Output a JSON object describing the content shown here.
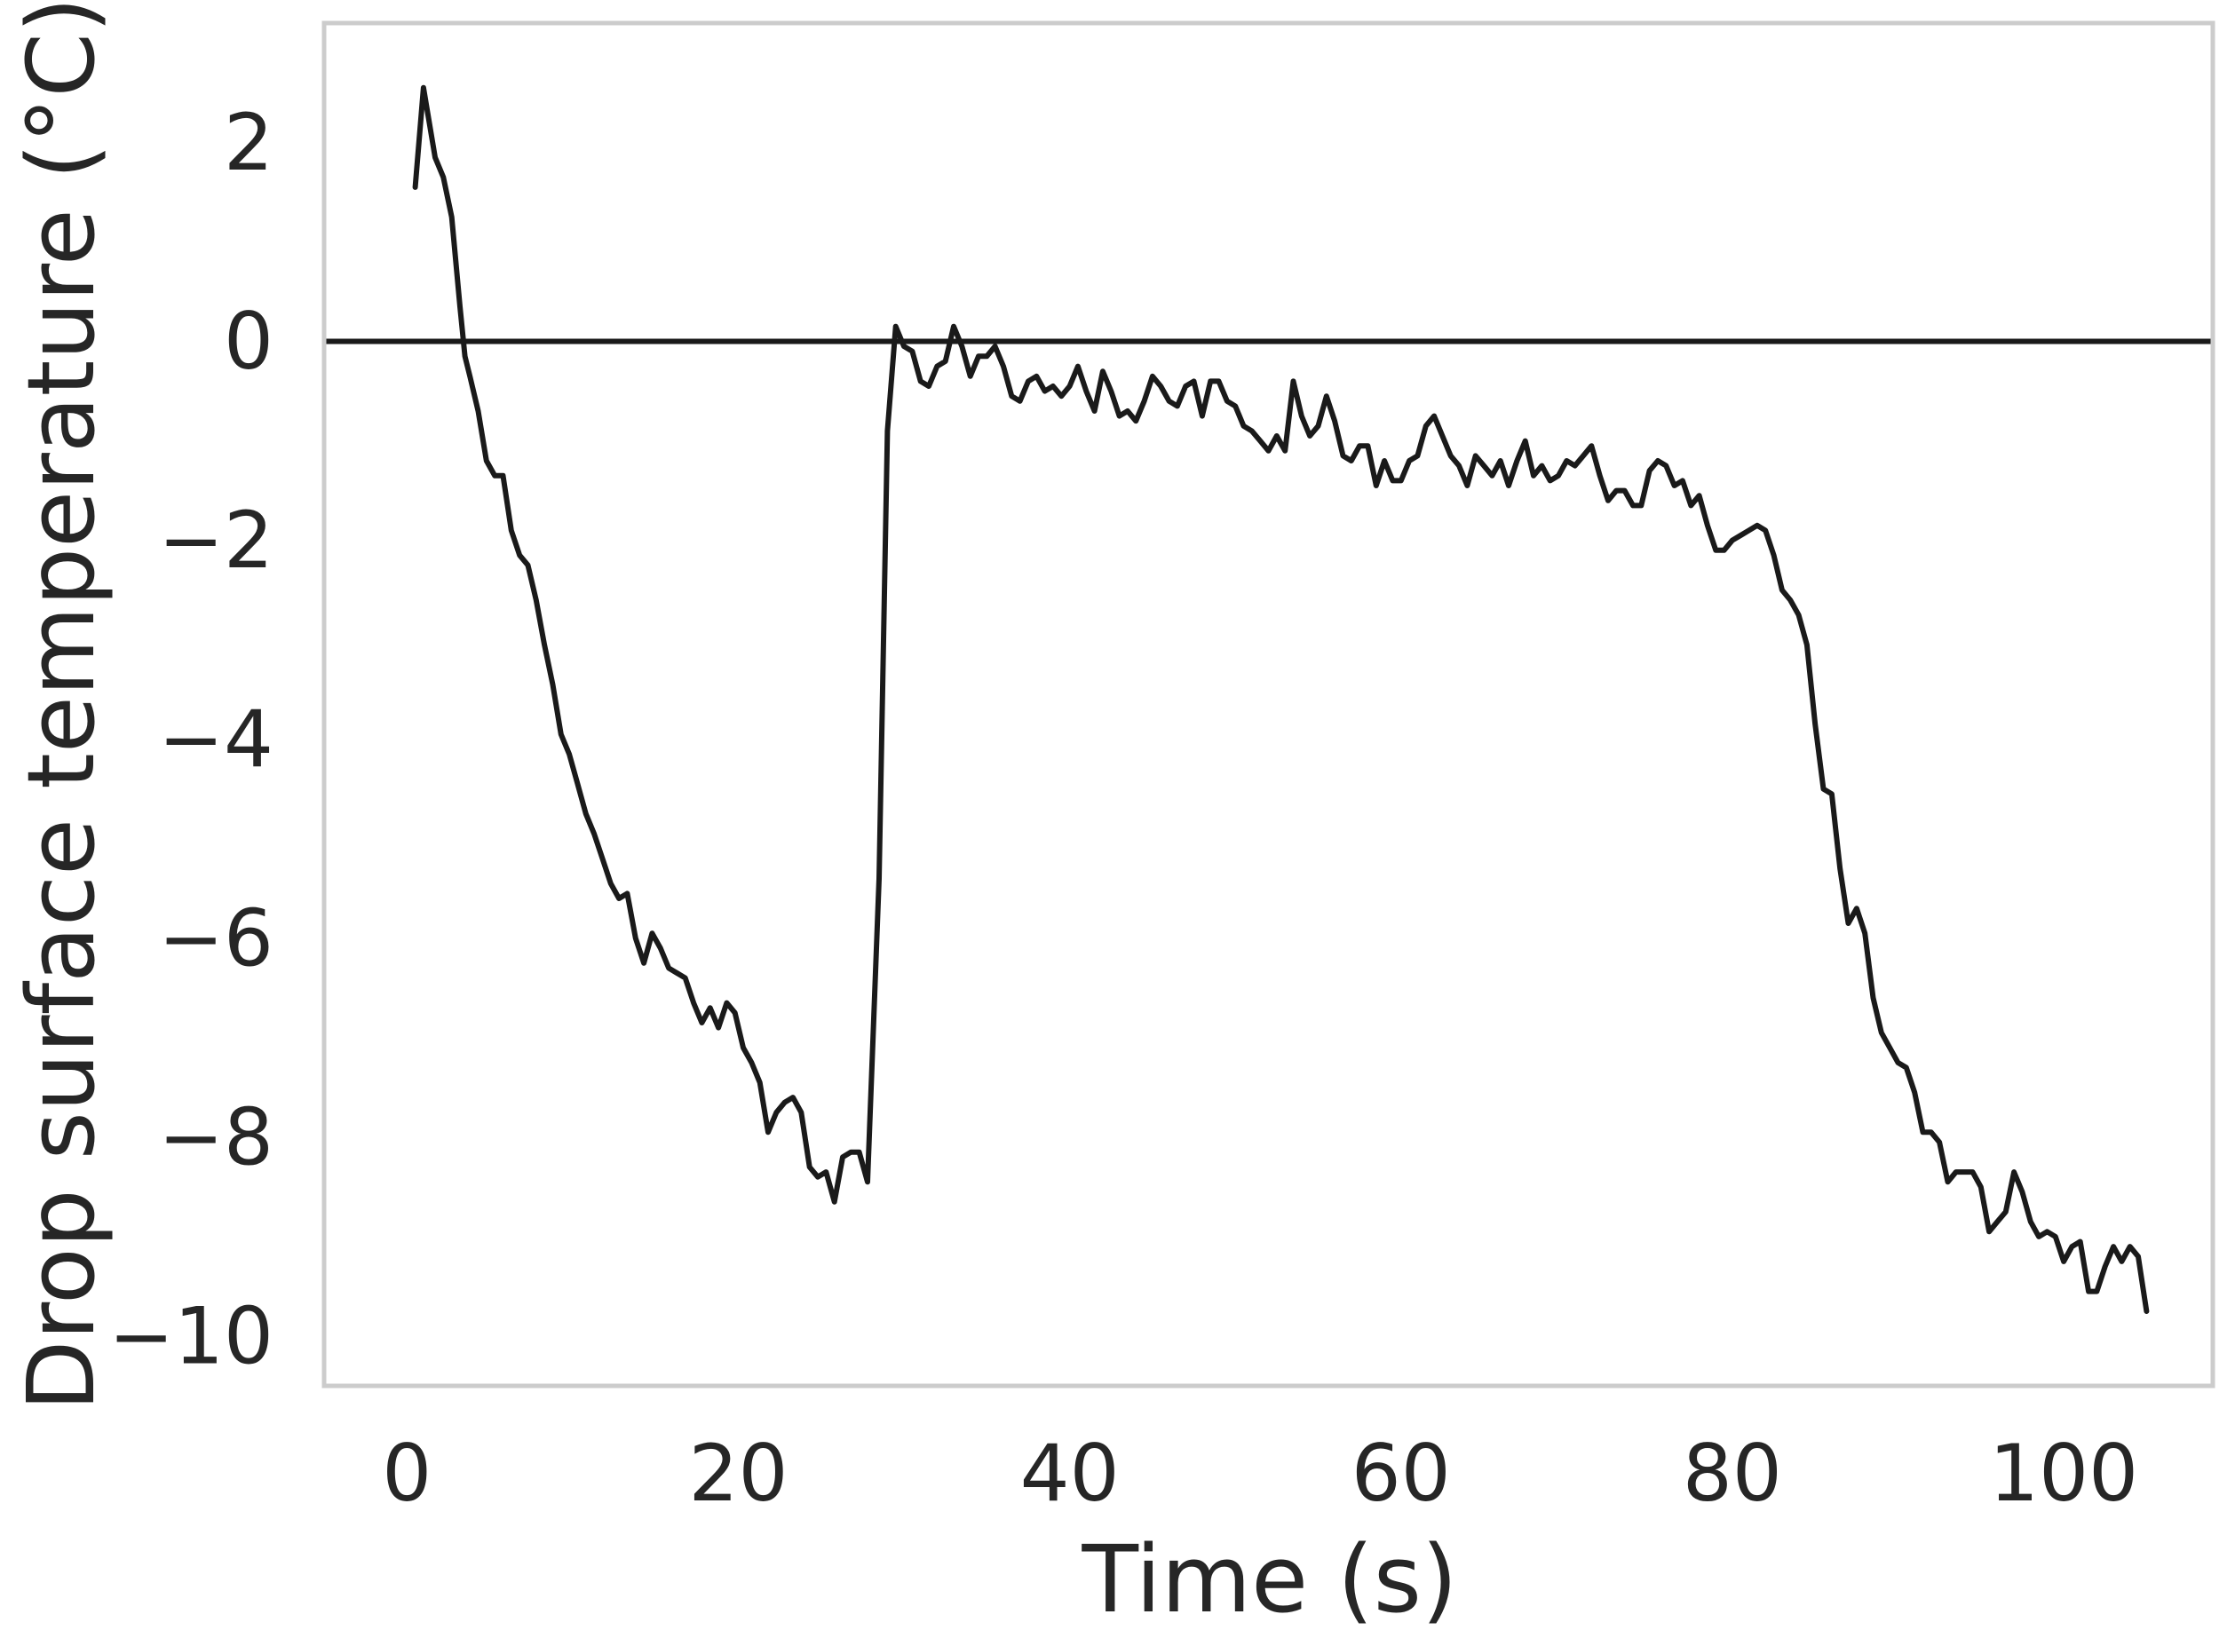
{
  "chart_data": {
    "type": "line",
    "xlabel": "Time (s)",
    "ylabel": "Drop surface temperature (°C)",
    "xlim": [
      -5,
      109
    ],
    "ylim": [
      -10.5,
      3.2
    ],
    "xticks": [
      0,
      20,
      40,
      60,
      80,
      100
    ],
    "yticks": [
      2,
      0,
      -2,
      -4,
      -6,
      -8,
      -10
    ],
    "xtick_labels": [
      "0",
      "20",
      "40",
      "60",
      "80",
      "100"
    ],
    "ytick_labels": [
      "2",
      "0",
      "−2",
      "−4",
      "−6",
      "−8",
      "−10"
    ],
    "grid": false,
    "reference_line": {
      "y": 0,
      "color": "#1a1a1a"
    },
    "series": [
      {
        "color": "#1a1a1a",
        "points": [
          [
            0.5,
            1.55
          ],
          [
            1.0,
            2.55
          ],
          [
            1.7,
            1.85
          ],
          [
            2.2,
            1.65
          ],
          [
            2.7,
            1.25
          ],
          [
            3.2,
            0.35
          ],
          [
            3.5,
            -0.15
          ],
          [
            3.8,
            -0.35
          ],
          [
            4.3,
            -0.7
          ],
          [
            4.8,
            -1.2
          ],
          [
            5.3,
            -1.35
          ],
          [
            5.8,
            -1.35
          ],
          [
            6.3,
            -1.9
          ],
          [
            6.8,
            -2.15
          ],
          [
            7.3,
            -2.25
          ],
          [
            7.8,
            -2.6
          ],
          [
            8.3,
            -3.05
          ],
          [
            8.8,
            -3.45
          ],
          [
            9.3,
            -3.95
          ],
          [
            9.8,
            -4.15
          ],
          [
            10.3,
            -4.45
          ],
          [
            10.8,
            -4.75
          ],
          [
            11.3,
            -4.95
          ],
          [
            11.8,
            -5.2
          ],
          [
            12.3,
            -5.45
          ],
          [
            12.8,
            -5.6
          ],
          [
            13.3,
            -5.55
          ],
          [
            13.8,
            -6.0
          ],
          [
            14.3,
            -6.25
          ],
          [
            14.8,
            -5.95
          ],
          [
            15.3,
            -6.1
          ],
          [
            15.8,
            -6.3
          ],
          [
            16.3,
            -6.35
          ],
          [
            16.8,
            -6.4
          ],
          [
            17.3,
            -6.65
          ],
          [
            17.8,
            -6.85
          ],
          [
            18.3,
            -6.7
          ],
          [
            18.8,
            -6.9
          ],
          [
            19.3,
            -6.65
          ],
          [
            19.8,
            -6.75
          ],
          [
            20.3,
            -7.1
          ],
          [
            20.8,
            -7.25
          ],
          [
            21.3,
            -7.45
          ],
          [
            21.8,
            -7.95
          ],
          [
            22.3,
            -7.75
          ],
          [
            22.8,
            -7.65
          ],
          [
            23.3,
            -7.6
          ],
          [
            23.8,
            -7.75
          ],
          [
            24.3,
            -8.3
          ],
          [
            24.8,
            -8.4
          ],
          [
            25.3,
            -8.35
          ],
          [
            25.8,
            -8.65
          ],
          [
            26.3,
            -8.2
          ],
          [
            26.8,
            -8.15
          ],
          [
            27.3,
            -8.15
          ],
          [
            27.8,
            -8.45
          ],
          [
            28.5,
            -5.4
          ],
          [
            29.0,
            -0.9
          ],
          [
            29.5,
            0.15
          ],
          [
            30.0,
            -0.05
          ],
          [
            30.5,
            -0.1
          ],
          [
            31.0,
            -0.4
          ],
          [
            31.5,
            -0.45
          ],
          [
            32.0,
            -0.25
          ],
          [
            32.5,
            -0.2
          ],
          [
            33.0,
            0.15
          ],
          [
            33.5,
            -0.05
          ],
          [
            34.0,
            -0.35
          ],
          [
            34.5,
            -0.15
          ],
          [
            35.0,
            -0.15
          ],
          [
            35.5,
            -0.05
          ],
          [
            36.0,
            -0.25
          ],
          [
            36.5,
            -0.55
          ],
          [
            37.0,
            -0.6
          ],
          [
            37.5,
            -0.4
          ],
          [
            38.0,
            -0.35
          ],
          [
            38.5,
            -0.5
          ],
          [
            39.0,
            -0.45
          ],
          [
            39.5,
            -0.55
          ],
          [
            40.0,
            -0.45
          ],
          [
            40.5,
            -0.25
          ],
          [
            41.0,
            -0.5
          ],
          [
            41.5,
            -0.7
          ],
          [
            42.0,
            -0.3
          ],
          [
            42.5,
            -0.5
          ],
          [
            43.0,
            -0.75
          ],
          [
            43.5,
            -0.7
          ],
          [
            44.0,
            -0.8
          ],
          [
            44.5,
            -0.6
          ],
          [
            45.0,
            -0.35
          ],
          [
            45.5,
            -0.45
          ],
          [
            46.0,
            -0.6
          ],
          [
            46.5,
            -0.65
          ],
          [
            47.0,
            -0.45
          ],
          [
            47.5,
            -0.4
          ],
          [
            48.0,
            -0.75
          ],
          [
            48.5,
            -0.4
          ],
          [
            49.0,
            -0.4
          ],
          [
            49.5,
            -0.6
          ],
          [
            50.0,
            -0.65
          ],
          [
            50.5,
            -0.85
          ],
          [
            51.0,
            -0.9
          ],
          [
            51.5,
            -1.0
          ],
          [
            52.0,
            -1.1
          ],
          [
            52.5,
            -0.95
          ],
          [
            53.0,
            -1.1
          ],
          [
            53.5,
            -0.4
          ],
          [
            54.0,
            -0.75
          ],
          [
            54.5,
            -0.95
          ],
          [
            55.0,
            -0.85
          ],
          [
            55.5,
            -0.55
          ],
          [
            56.0,
            -0.8
          ],
          [
            56.5,
            -1.15
          ],
          [
            57.0,
            -1.2
          ],
          [
            57.5,
            -1.05
          ],
          [
            58.0,
            -1.05
          ],
          [
            58.5,
            -1.45
          ],
          [
            59.0,
            -1.2
          ],
          [
            59.5,
            -1.4
          ],
          [
            60.0,
            -1.4
          ],
          [
            60.5,
            -1.2
          ],
          [
            61.0,
            -1.15
          ],
          [
            61.5,
            -0.85
          ],
          [
            62.0,
            -0.75
          ],
          [
            62.5,
            -0.95
          ],
          [
            63.0,
            -1.15
          ],
          [
            63.5,
            -1.25
          ],
          [
            64.0,
            -1.45
          ],
          [
            64.5,
            -1.15
          ],
          [
            65.0,
            -1.25
          ],
          [
            65.5,
            -1.35
          ],
          [
            66.0,
            -1.2
          ],
          [
            66.5,
            -1.45
          ],
          [
            67.0,
            -1.2
          ],
          [
            67.5,
            -1.0
          ],
          [
            68.0,
            -1.35
          ],
          [
            68.5,
            -1.25
          ],
          [
            69.0,
            -1.4
          ],
          [
            69.5,
            -1.35
          ],
          [
            70.0,
            -1.2
          ],
          [
            70.5,
            -1.25
          ],
          [
            71.0,
            -1.15
          ],
          [
            71.5,
            -1.05
          ],
          [
            72.0,
            -1.35
          ],
          [
            72.5,
            -1.6
          ],
          [
            73.0,
            -1.5
          ],
          [
            73.5,
            -1.5
          ],
          [
            74.0,
            -1.65
          ],
          [
            74.5,
            -1.65
          ],
          [
            75.0,
            -1.3
          ],
          [
            75.5,
            -1.2
          ],
          [
            76.0,
            -1.25
          ],
          [
            76.5,
            -1.45
          ],
          [
            77.0,
            -1.4
          ],
          [
            77.5,
            -1.65
          ],
          [
            78.0,
            -1.55
          ],
          [
            78.5,
            -1.85
          ],
          [
            79.0,
            -2.1
          ],
          [
            79.5,
            -2.1
          ],
          [
            80.0,
            -2.0
          ],
          [
            80.5,
            -1.95
          ],
          [
            81.0,
            -1.9
          ],
          [
            81.5,
            -1.85
          ],
          [
            82.0,
            -1.9
          ],
          [
            82.5,
            -2.15
          ],
          [
            83.0,
            -2.5
          ],
          [
            83.5,
            -2.6
          ],
          [
            84.0,
            -2.75
          ],
          [
            84.5,
            -3.05
          ],
          [
            85.0,
            -3.85
          ],
          [
            85.5,
            -4.5
          ],
          [
            86.0,
            -4.55
          ],
          [
            86.5,
            -5.3
          ],
          [
            87.0,
            -5.85
          ],
          [
            87.5,
            -5.7
          ],
          [
            88.0,
            -5.95
          ],
          [
            88.5,
            -6.6
          ],
          [
            89.0,
            -6.95
          ],
          [
            89.5,
            -7.1
          ],
          [
            90.0,
            -7.25
          ],
          [
            90.5,
            -7.3
          ],
          [
            91.0,
            -7.55
          ],
          [
            91.5,
            -7.95
          ],
          [
            92.0,
            -7.95
          ],
          [
            92.5,
            -8.05
          ],
          [
            93.0,
            -8.45
          ],
          [
            93.5,
            -8.35
          ],
          [
            94.0,
            -8.35
          ],
          [
            94.5,
            -8.35
          ],
          [
            95.0,
            -8.5
          ],
          [
            95.5,
            -8.95
          ],
          [
            96.0,
            -8.85
          ],
          [
            96.5,
            -8.75
          ],
          [
            97.0,
            -8.35
          ],
          [
            97.5,
            -8.55
          ],
          [
            98.0,
            -8.85
          ],
          [
            98.5,
            -9.0
          ],
          [
            99.0,
            -8.95
          ],
          [
            99.5,
            -9.0
          ],
          [
            100.0,
            -9.25
          ],
          [
            100.5,
            -9.1
          ],
          [
            101.0,
            -9.05
          ],
          [
            101.5,
            -9.55
          ],
          [
            102.0,
            -9.55
          ],
          [
            102.5,
            -9.3
          ],
          [
            103.0,
            -9.1
          ],
          [
            103.5,
            -9.25
          ],
          [
            104.0,
            -9.1
          ],
          [
            104.5,
            -9.2
          ],
          [
            105.0,
            -9.75
          ]
        ]
      }
    ]
  }
}
